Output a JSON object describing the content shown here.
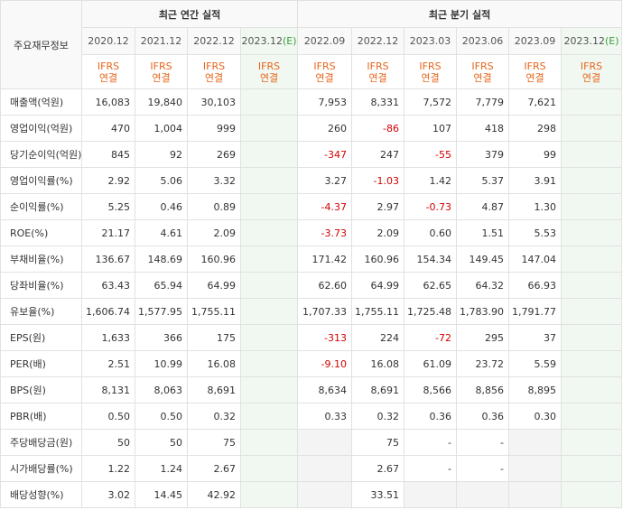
{
  "table": {
    "corner_label": "주요재무정보",
    "annual_header": "최근 연간 실적",
    "quarter_header": "최근 분기 실적",
    "annual_periods": [
      "2020.12",
      "2021.12",
      "2022.12",
      "2023.12"
    ],
    "estimate_mark": "(E)",
    "quarter_periods": [
      "2022.09",
      "2022.12",
      "2023.03",
      "2023.06",
      "2023.09",
      "2023.12"
    ],
    "ifrs_top": "IFRS",
    "ifrs_bottom": "연결",
    "rows": [
      {
        "label": "매출액(억원)",
        "values": [
          "16,083",
          "19,840",
          "30,103",
          "",
          "7,953",
          "8,331",
          "7,572",
          "7,779",
          "7,621",
          ""
        ]
      },
      {
        "label": "영업이익(억원)",
        "values": [
          "470",
          "1,004",
          "999",
          "",
          "260",
          "-86",
          "107",
          "418",
          "298",
          ""
        ]
      },
      {
        "label": "당기순이익(억원)",
        "values": [
          "845",
          "92",
          "269",
          "",
          "-347",
          "247",
          "-55",
          "379",
          "99",
          ""
        ]
      },
      {
        "label": "영업이익률(%)",
        "values": [
          "2.92",
          "5.06",
          "3.32",
          "",
          "3.27",
          "-1.03",
          "1.42",
          "5.37",
          "3.91",
          ""
        ]
      },
      {
        "label": "순이익률(%)",
        "values": [
          "5.25",
          "0.46",
          "0.89",
          "",
          "-4.37",
          "2.97",
          "-0.73",
          "4.87",
          "1.30",
          ""
        ]
      },
      {
        "label": "ROE(%)",
        "values": [
          "21.17",
          "4.61",
          "2.09",
          "",
          "-3.73",
          "2.09",
          "0.60",
          "1.51",
          "5.53",
          ""
        ]
      },
      {
        "label": "부채비율(%)",
        "values": [
          "136.67",
          "148.69",
          "160.96",
          "",
          "171.42",
          "160.96",
          "154.34",
          "149.45",
          "147.04",
          ""
        ]
      },
      {
        "label": "당좌비율(%)",
        "values": [
          "63.43",
          "65.94",
          "64.99",
          "",
          "62.60",
          "64.99",
          "62.65",
          "64.32",
          "66.93",
          ""
        ]
      },
      {
        "label": "유보율(%)",
        "values": [
          "1,606.74",
          "1,577.95",
          "1,755.11",
          "",
          "1,707.33",
          "1,755.11",
          "1,725.48",
          "1,783.90",
          "1,791.77",
          ""
        ]
      },
      {
        "label": "EPS(원)",
        "values": [
          "1,633",
          "366",
          "175",
          "",
          "-313",
          "224",
          "-72",
          "295",
          "37",
          ""
        ]
      },
      {
        "label": "PER(배)",
        "values": [
          "2.51",
          "10.99",
          "16.08",
          "",
          "-9.10",
          "16.08",
          "61.09",
          "23.72",
          "5.59",
          ""
        ]
      },
      {
        "label": "BPS(원)",
        "values": [
          "8,131",
          "8,063",
          "8,691",
          "",
          "8,634",
          "8,691",
          "8,566",
          "8,856",
          "8,895",
          ""
        ]
      },
      {
        "label": "PBR(배)",
        "values": [
          "0.50",
          "0.50",
          "0.32",
          "",
          "0.33",
          "0.32",
          "0.36",
          "0.36",
          "0.30",
          ""
        ]
      },
      {
        "label": "주당배당금(원)",
        "values": [
          "50",
          "50",
          "75",
          "",
          "",
          "75",
          "-",
          "-",
          "",
          ""
        ]
      },
      {
        "label": "시가배당률(%)",
        "values": [
          "1.22",
          "1.24",
          "2.67",
          "",
          "",
          "2.67",
          "-",
          "-",
          "",
          ""
        ]
      },
      {
        "label": "배당성향(%)",
        "values": [
          "3.02",
          "14.45",
          "42.92",
          "",
          "",
          "33.51",
          "",
          "",
          "",
          ""
        ]
      }
    ]
  }
}
